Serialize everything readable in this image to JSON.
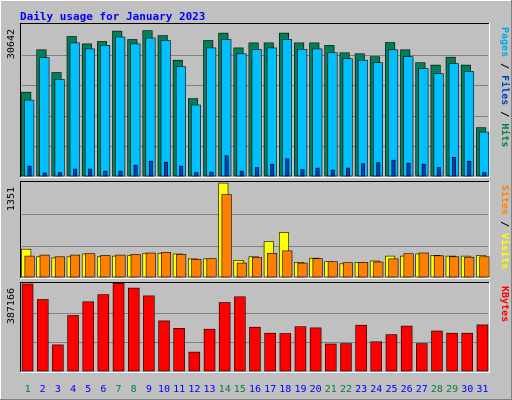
{
  "chart_data": {
    "type": "bar",
    "title": "Daily usage for January 2023",
    "categories": [
      "1",
      "2",
      "3",
      "4",
      "5",
      "6",
      "7",
      "8",
      "9",
      "10",
      "11",
      "12",
      "13",
      "14",
      "15",
      "16",
      "17",
      "18",
      "19",
      "20",
      "21",
      "22",
      "23",
      "24",
      "25",
      "26",
      "27",
      "28",
      "29",
      "30",
      "31"
    ],
    "weekend_days": [
      "1",
      "7",
      "8",
      "14",
      "15",
      "21",
      "22",
      "28",
      "29"
    ],
    "colors": {
      "background": "#c0c0c0",
      "frame_light": "#ffffff",
      "frame_dark": "#808080",
      "title": "#0000ff",
      "weekday_label": "#0000ff",
      "weekend_label": "#008040",
      "gridline": "#808080",
      "axis_value": "#000000"
    },
    "panels": [
      {
        "id": "hits-files-pages",
        "max_label": "30642",
        "ylim": [
          0,
          30642
        ],
        "right_label_parts": [
          {
            "text": "Pages",
            "color": "#00a8e8"
          },
          {
            "text": " / ",
            "color": "#000000"
          },
          {
            "text": "Files",
            "color": "#0040c0"
          },
          {
            "text": " / ",
            "color": "#000000"
          },
          {
            "text": "Hits",
            "color": "#008040"
          }
        ],
        "series": [
          {
            "name": "Hits",
            "color": "#00805a",
            "values": [
              17000,
              25600,
              21000,
              28300,
              26800,
              27300,
              29400,
              27700,
              29500,
              28500,
              23500,
              15700,
              27500,
              29000,
              26000,
              27000,
              27000,
              29000,
              27000,
              27000,
              26500,
              25000,
              24800,
              24200,
              27100,
              25600,
              23000,
              22500,
              24100,
              22500,
              9800
            ]
          },
          {
            "name": "Files",
            "color": "#00c0ff",
            "values": [
              15400,
              24000,
              19600,
              27000,
              25800,
              26500,
              28200,
              26800,
              28000,
              27500,
              22200,
              14400,
              26000,
              27700,
              24800,
              25700,
              26000,
              27700,
              25700,
              25800,
              25000,
              23800,
              23500,
              23000,
              25600,
              24200,
              21800,
              20800,
              22800,
              21200,
              8900
            ]
          },
          {
            "name": "Pages",
            "color": "#0040c0",
            "values": [
              2000,
              600,
              700,
              1400,
              1400,
              1000,
              1000,
              2200,
              3000,
              2800,
              2000,
              700,
              800,
              4100,
              1000,
              1700,
              2400,
              3500,
              1300,
              1600,
              1200,
              1600,
              2500,
              2700,
              3200,
              2600,
              2400,
              1700,
              3800,
              3000,
              700
            ]
          }
        ]
      },
      {
        "id": "visits-sites",
        "max_label": "1351",
        "ylim": [
          0,
          1351
        ],
        "right_label_parts": [
          {
            "text": "Sites",
            "color": "#ff8000"
          },
          {
            "text": " / ",
            "color": "#000000"
          },
          {
            "text": "Visits",
            "color": "#ffff00"
          }
        ],
        "series": [
          {
            "name": "Visits",
            "color": "#ffff00",
            "values": [
              400,
              290,
              275,
              290,
              330,
              290,
              300,
              310,
              340,
              340,
              330,
              260,
              260,
              1350,
              240,
              290,
              510,
              640,
              210,
              270,
              220,
              190,
              210,
              230,
              300,
              300,
              330,
              310,
              300,
              300,
              310
            ]
          },
          {
            "name": "Sites",
            "color": "#ff8000",
            "values": [
              300,
              315,
              290,
              315,
              335,
              310,
              315,
              325,
              345,
              355,
              325,
              255,
              265,
              1185,
              200,
              280,
              340,
              375,
              200,
              265,
              220,
              205,
              210,
              215,
              260,
              335,
              345,
              305,
              290,
              285,
              290
            ]
          }
        ]
      },
      {
        "id": "kbytes",
        "max_label": "387166",
        "ylim": [
          0,
          387166
        ],
        "right_label_parts": [
          {
            "text": "KBytes",
            "color": "#ff0000"
          }
        ],
        "series": [
          {
            "name": "KBytes",
            "color": "#ff0000",
            "values": [
              387166,
              318000,
              116000,
              247000,
              308000,
              340000,
              390000,
              369000,
              334000,
              223000,
              190000,
              84000,
              186000,
              305000,
              330000,
              195000,
              168000,
              167000,
              197000,
              192000,
              120000,
              122000,
              204000,
              130000,
              162000,
              200000,
              122000,
              178000,
              168000,
              168000,
              205000
            ]
          }
        ]
      }
    ]
  }
}
